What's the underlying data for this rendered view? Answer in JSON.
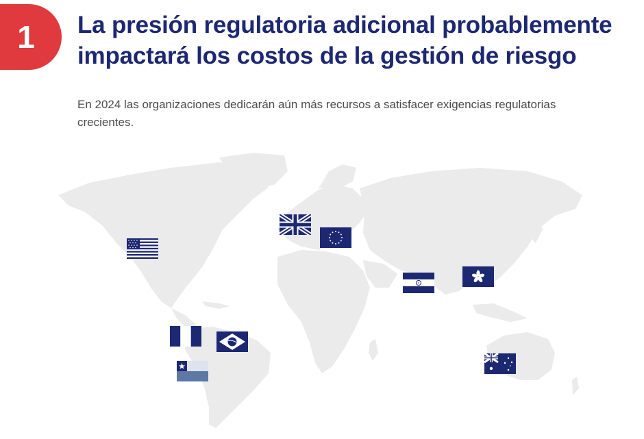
{
  "badge": {
    "number": "1"
  },
  "header": {
    "title": "La presión regulatoria adicional probablemente impactará los costos de la gestión de riesgo",
    "subtitle": "En 2024 las organizaciones dedicarán aún más recursos a satisfacer exigencias regulatorias crecientes."
  },
  "colors": {
    "accent": "#e03a3e",
    "navy": "#1d2873",
    "map_land": "#ebebeb"
  },
  "map": {
    "flags": [
      {
        "name": "united-states-flag-icon"
      },
      {
        "name": "united-kingdom-flag-icon"
      },
      {
        "name": "european-union-flag-icon"
      },
      {
        "name": "india-flag-icon"
      },
      {
        "name": "hong-kong-flag-icon"
      },
      {
        "name": "guatemala-flag-icon"
      },
      {
        "name": "brazil-flag-icon"
      },
      {
        "name": "chile-flag-icon"
      },
      {
        "name": "australia-flag-icon"
      }
    ]
  }
}
